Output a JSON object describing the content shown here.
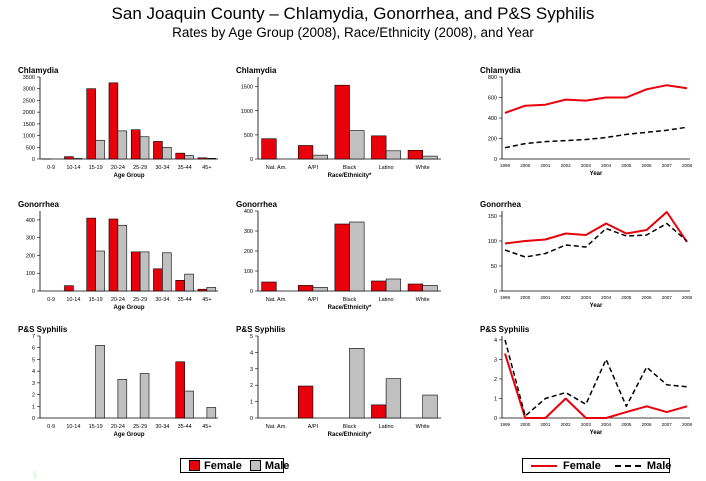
{
  "header": {
    "title": "San Joaquin County – Chlamydia, Gonorrhea, and P&S Syphilis",
    "subtitle": "Rates by Age Group (2008), Race/Ethnicity (2008), and Year"
  },
  "colors": {
    "female": "#e8000b",
    "male": "#c0c0c0",
    "axis": "#000000"
  },
  "legend_bar": {
    "female": "Female",
    "male": "Male"
  },
  "legend_line": {
    "female": "Female",
    "male": "Male"
  },
  "chart_data": [
    {
      "id": "age-chlamydia",
      "type": "bar",
      "title": "Chlamydia",
      "xlabel": "Age Group",
      "ylabel": "",
      "categories": [
        "0-9",
        "10-14",
        "15-19",
        "20-24",
        "25-29",
        "30-34",
        "35-44",
        "45+"
      ],
      "ylim": [
        0,
        3500
      ],
      "yticks": [
        0,
        500,
        1000,
        1500,
        2000,
        2500,
        3000,
        3500
      ],
      "series": [
        {
          "name": "Female",
          "values": [
            5,
            100,
            3000,
            3250,
            1250,
            750,
            250,
            50
          ]
        },
        {
          "name": "Male",
          "values": [
            0,
            20,
            800,
            1200,
            950,
            500,
            150,
            30
          ]
        }
      ]
    },
    {
      "id": "race-chlamydia",
      "type": "bar",
      "title": "Chlamydia",
      "xlabel": "Race/Ethnicity*",
      "ylabel": "",
      "categories": [
        "Nat. Am.",
        "A/PI",
        "Black",
        "Latino",
        "White"
      ],
      "ylim": [
        0,
        1700
      ],
      "yticks": [
        0,
        500,
        1000,
        1500
      ],
      "series": [
        {
          "name": "Female",
          "values": [
            420,
            280,
            1530,
            480,
            180
          ]
        },
        {
          "name": "Male",
          "values": [
            0,
            80,
            590,
            170,
            60
          ]
        }
      ]
    },
    {
      "id": "year-chlamydia",
      "type": "line",
      "title": "Chlamydia",
      "xlabel": "Year",
      "ylabel": "",
      "x": [
        "1999",
        "2000",
        "2001",
        "2002",
        "2003",
        "2004",
        "2005",
        "2006",
        "2007",
        "2008"
      ],
      "ylim": [
        0,
        800
      ],
      "yticks": [
        0,
        200,
        400,
        600,
        800
      ],
      "series": [
        {
          "name": "Female",
          "values": [
            450,
            520,
            530,
            580,
            570,
            600,
            600,
            680,
            720,
            690
          ]
        },
        {
          "name": "Male",
          "values": [
            110,
            150,
            170,
            180,
            190,
            210,
            240,
            260,
            280,
            310
          ]
        }
      ]
    },
    {
      "id": "age-gonorrhea",
      "type": "bar",
      "title": "Gonorrhea",
      "xlabel": "Age Group",
      "ylabel": "",
      "categories": [
        "0-9",
        "10-14",
        "15-19",
        "20-24",
        "25-29",
        "30-34",
        "35-44",
        "45+"
      ],
      "ylim": [
        0,
        450
      ],
      "yticks": [
        0,
        100,
        200,
        300,
        400
      ],
      "series": [
        {
          "name": "Female",
          "values": [
            0,
            30,
            410,
            405,
            220,
            125,
            60,
            10
          ]
        },
        {
          "name": "Male",
          "values": [
            0,
            0,
            225,
            370,
            220,
            215,
            95,
            20
          ]
        }
      ]
    },
    {
      "id": "race-gonorrhea",
      "type": "bar",
      "title": "Gonorrhea",
      "xlabel": "Race/Ethnicity*",
      "ylabel": "",
      "categories": [
        "Nat. Am.",
        "A/PI",
        "Black",
        "Latino",
        "White"
      ],
      "ylim": [
        0,
        400
      ],
      "yticks": [
        0,
        100,
        200,
        300,
        400
      ],
      "series": [
        {
          "name": "Female",
          "values": [
            45,
            28,
            335,
            50,
            35
          ]
        },
        {
          "name": "Male",
          "values": [
            0,
            18,
            345,
            60,
            28
          ]
        }
      ]
    },
    {
      "id": "year-gonorrhea",
      "type": "line",
      "title": "Gonorrhea",
      "xlabel": "Year",
      "ylabel": "",
      "x": [
        "1999",
        "2000",
        "2001",
        "2002",
        "2003",
        "2004",
        "2005",
        "2006",
        "2007",
        "2008"
      ],
      "ylim": [
        0,
        160
      ],
      "yticks": [
        0,
        50,
        100,
        150
      ],
      "series": [
        {
          "name": "Female",
          "values": [
            95,
            100,
            103,
            115,
            112,
            135,
            115,
            122,
            158,
            98
          ]
        },
        {
          "name": "Male",
          "values": [
            82,
            68,
            75,
            92,
            88,
            125,
            110,
            112,
            135,
            100
          ]
        }
      ]
    },
    {
      "id": "age-syphilis",
      "type": "bar",
      "title": "P&S Syphilis",
      "xlabel": "Age Group",
      "ylabel": "",
      "categories": [
        "0-9",
        "10-14",
        "15-19",
        "20-24",
        "25-29",
        "30-34",
        "35-44",
        "45+"
      ],
      "ylim": [
        0,
        7
      ],
      "yticks": [
        0,
        1,
        2,
        3,
        4,
        5,
        6,
        7
      ],
      "series": [
        {
          "name": "Female",
          "values": [
            0,
            0,
            0,
            0,
            0,
            0,
            4.8,
            0
          ]
        },
        {
          "name": "Male",
          "values": [
            0,
            0,
            6.2,
            3.3,
            3.8,
            0,
            2.3,
            0.9
          ]
        }
      ]
    },
    {
      "id": "race-syphilis",
      "type": "bar",
      "title": "P&S Syphilis",
      "xlabel": "Race/Ethnicity*",
      "ylabel": "",
      "categories": [
        "Nat. Am.",
        "A/PI",
        "Black",
        "Latino",
        "White"
      ],
      "ylim": [
        0,
        5
      ],
      "yticks": [
        0,
        1,
        2,
        3,
        4,
        5
      ],
      "series": [
        {
          "name": "Female",
          "values": [
            0,
            1.95,
            0,
            0.8,
            0
          ]
        },
        {
          "name": "Male",
          "values": [
            0,
            0,
            4.25,
            2.4,
            1.4
          ]
        }
      ]
    },
    {
      "id": "year-syphilis",
      "type": "line",
      "title": "P&S Syphilis",
      "xlabel": "Year",
      "ylabel": "",
      "x": [
        "1999",
        "2000",
        "2001",
        "2002",
        "2003",
        "2004",
        "2005",
        "2006",
        "2007",
        "2008"
      ],
      "ylim": [
        0,
        4.2
      ],
      "yticks": [
        0,
        1,
        2,
        3,
        4
      ],
      "series": [
        {
          "name": "Female",
          "values": [
            3.3,
            0.0,
            0.0,
            1.0,
            0.0,
            0.0,
            0.3,
            0.6,
            0.3,
            0.6
          ]
        },
        {
          "name": "Male",
          "values": [
            4.0,
            0.1,
            1.0,
            1.3,
            0.7,
            3.0,
            0.6,
            2.6,
            1.7,
            1.6
          ]
        }
      ]
    }
  ]
}
